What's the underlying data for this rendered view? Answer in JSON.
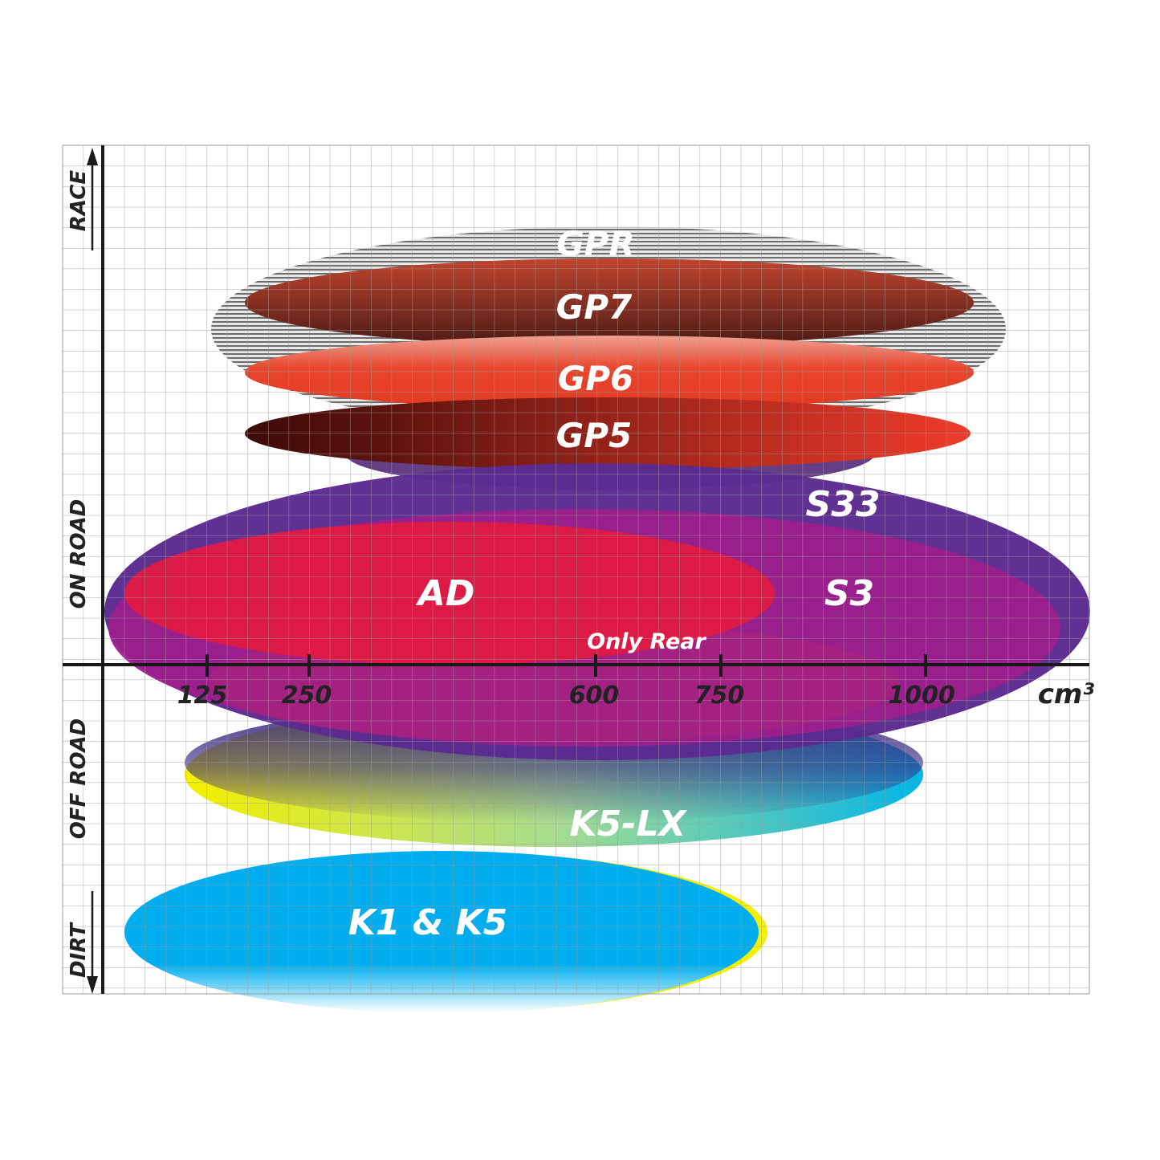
{
  "y_axis": {
    "top": "RACE",
    "upper_mid": "ON ROAD",
    "lower_mid": "OFF ROAD",
    "bottom": "DIRT"
  },
  "x_axis": {
    "ticks": [
      "125",
      "250",
      "600",
      "750",
      "1000"
    ],
    "unit": "cm³"
  },
  "tyres": {
    "gpr": "GPR",
    "gp7": "GP7",
    "gp6": "GP6",
    "gp5": "GP5",
    "s33": "S33",
    "s3": "S3",
    "ad": "AD",
    "only_rear": "Only Rear",
    "k5lx": "K5-LX",
    "k1k5": "K1 & K5"
  },
  "colors": {
    "gpr": "#9a9a9a",
    "gp7": "#7a2a1e",
    "gp6": "#e8452c",
    "gp5": "#a01e10",
    "s33": "#5b2a8f",
    "s3": "#9c1f8c",
    "ad": "#e01a42",
    "k5lx": "#c8e020",
    "k1k5": "#00aeef"
  }
}
